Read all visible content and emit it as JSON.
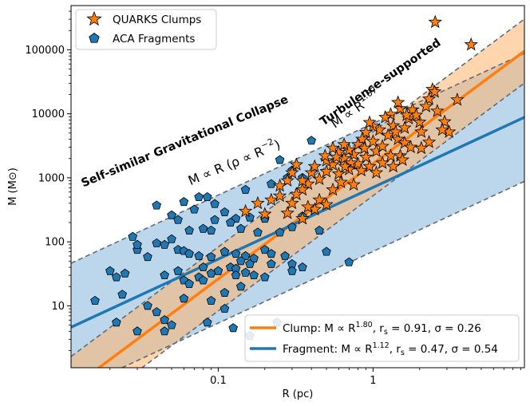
{
  "chart_data": {
    "type": "scatter",
    "xscale": "log",
    "yscale": "log",
    "xlim": [
      0.0112,
      9.5
    ],
    "ylim": [
      1.08,
      490000
    ],
    "xlabel": "R (pc)",
    "ylabel": "M (M⊙)",
    "x_ticks": [
      0.1,
      1
    ],
    "x_tick_labels": [
      "0.1",
      "1"
    ],
    "y_ticks": [
      10,
      100,
      1000,
      10000,
      100000
    ],
    "y_tick_labels": [
      "10",
      "100",
      "1000",
      "10000",
      "100000"
    ],
    "colors": {
      "clump": "#ff7f0e",
      "clump_band": "#ffb36b",
      "fragment": "#1f77b4",
      "fragment_band": "#7fb2d8",
      "dashed": "#5f6b78"
    },
    "legend_top": {
      "position": "top-left",
      "entries": [
        {
          "label": "QUARKS Clumps",
          "marker": "star",
          "color": "#ff7f0e"
        },
        {
          "label": "ACA Fragments",
          "marker": "pentagon",
          "color": "#1f77b4"
        }
      ]
    },
    "legend_bottom": {
      "position": "bottom-right",
      "entries": [
        {
          "prefix": "Clump: M ∝ R",
          "exp": "1.80",
          "suffix": ", r",
          "sub": "s",
          "rest": " = 0.91, σ = 0.26",
          "color": "#ff7f0e"
        },
        {
          "prefix": "Fragment: M ∝ R",
          "exp": "1.12",
          "suffix": ", r",
          "sub": "s",
          "rest": " = 0.47, σ = 0.54",
          "color": "#1f77b4"
        }
      ]
    },
    "fits": [
      {
        "name": "Clump",
        "slope": 1.8,
        "log_intercept": 3.22,
        "band_dex": 0.5,
        "color": "#ff7f0e"
      },
      {
        "name": "Fragment",
        "slope": 1.12,
        "log_intercept": 2.85,
        "band_dex": 1.0,
        "color": "#1f77b4"
      }
    ],
    "annotations": [
      {
        "id": "self-similar",
        "text": "Self-similar Gravitational Collapse",
        "x": 0.062,
        "y": 3300
      },
      {
        "id": "self-similar-rel",
        "text": "M ∝ R  (ρ ∝ R",
        "exp": "−2",
        "close": ")",
        "x": 0.13,
        "y": 1500
      },
      {
        "id": "turbulence",
        "text": "Turbulence-supported",
        "x": 1.15,
        "y": 28000
      },
      {
        "id": "turbulence-rel",
        "text": "M ∝ R",
        "exp": "1.67",
        "x": 0.8,
        "y": 10500
      }
    ],
    "series": [
      {
        "name": "QUARKS Clumps",
        "marker": "star",
        "points": [
          [
            2.52,
            270000
          ],
          [
            4.3,
            120000
          ],
          [
            2.42,
            24000
          ],
          [
            3.5,
            16500
          ],
          [
            2.3,
            17000
          ],
          [
            2.5,
            22000
          ],
          [
            2.2,
            13000
          ],
          [
            2.6,
            11000
          ],
          [
            2.9,
            7500
          ],
          [
            3.1,
            5200
          ],
          [
            2.0,
            7400
          ],
          [
            2.05,
            5200
          ],
          [
            1.8,
            11500
          ],
          [
            1.7,
            8400
          ],
          [
            1.9,
            9500
          ],
          [
            1.5,
            12000
          ],
          [
            1.6,
            6000
          ],
          [
            1.45,
            15000
          ],
          [
            1.3,
            9800
          ],
          [
            1.2,
            8800
          ],
          [
            1.35,
            6500
          ],
          [
            1.1,
            5600
          ],
          [
            1.0,
            6400
          ],
          [
            0.95,
            7300
          ],
          [
            0.9,
            5100
          ],
          [
            0.85,
            4000
          ],
          [
            1.25,
            4600
          ],
          [
            1.45,
            4000
          ],
          [
            1.6,
            3500
          ],
          [
            1.75,
            3000
          ],
          [
            2.3,
            3600
          ],
          [
            2.05,
            2900
          ],
          [
            1.0,
            3700
          ],
          [
            0.8,
            3300
          ],
          [
            0.75,
            2300
          ],
          [
            0.7,
            2700
          ],
          [
            0.65,
            2000
          ],
          [
            0.6,
            2500
          ],
          [
            0.9,
            2100
          ],
          [
            1.05,
            2600
          ],
          [
            1.15,
            3100
          ],
          [
            1.3,
            2200
          ],
          [
            1.5,
            2200
          ],
          [
            0.55,
            1600
          ],
          [
            0.5,
            1850
          ],
          [
            0.5,
            1250
          ],
          [
            0.6,
            1150
          ],
          [
            0.7,
            1350
          ],
          [
            0.8,
            1650
          ],
          [
            0.95,
            1500
          ],
          [
            1.15,
            1700
          ],
          [
            0.45,
            950
          ],
          [
            0.4,
            1200
          ],
          [
            0.38,
            800
          ],
          [
            0.35,
            650
          ],
          [
            0.32,
            1600
          ],
          [
            0.42,
            1500
          ],
          [
            0.3,
            1200
          ],
          [
            0.28,
            900
          ],
          [
            0.25,
            750
          ],
          [
            0.55,
            650
          ],
          [
            0.62,
            850
          ],
          [
            0.75,
            780
          ],
          [
            0.45,
            450
          ],
          [
            0.5,
            380
          ],
          [
            0.42,
            320
          ],
          [
            0.38,
            350
          ],
          [
            0.35,
            230
          ],
          [
            0.3,
            400
          ],
          [
            0.28,
            280
          ],
          [
            0.22,
            450
          ],
          [
            0.25,
            520
          ],
          [
            0.2,
            270
          ],
          [
            0.18,
            400
          ],
          [
            0.15,
            300
          ],
          [
            0.35,
            900
          ],
          [
            0.65,
            3300
          ],
          [
            0.55,
            2900
          ],
          [
            2.8,
            5600
          ],
          [
            0.88,
            2900
          ],
          [
            1.65,
            9500
          ],
          [
            0.72,
            1700
          ],
          [
            0.58,
            2100
          ],
          [
            0.66,
            1500
          ],
          [
            0.84,
            1300
          ],
          [
            1.05,
            1200
          ],
          [
            1.35,
            1500
          ],
          [
            1.55,
            1900
          ],
          [
            0.49,
            2200
          ],
          [
            1.4,
            5200
          ],
          [
            0.32,
            550
          ]
        ]
      },
      {
        "name": "ACA Fragments",
        "marker": "pentagon",
        "points": [
          [
            0.4,
            3800
          ],
          [
            0.25,
            1900
          ],
          [
            0.3,
            1300
          ],
          [
            0.35,
            1000
          ],
          [
            0.28,
            1000
          ],
          [
            0.22,
            800
          ],
          [
            0.15,
            650
          ],
          [
            0.085,
            500
          ],
          [
            0.075,
            500
          ],
          [
            0.06,
            420
          ],
          [
            0.04,
            370
          ],
          [
            0.095,
            390
          ],
          [
            0.07,
            320
          ],
          [
            0.05,
            260
          ],
          [
            0.11,
            290
          ],
          [
            0.095,
            220
          ],
          [
            0.055,
            220
          ],
          [
            0.13,
            230
          ],
          [
            0.16,
            240
          ],
          [
            0.2,
            230
          ],
          [
            0.12,
            200
          ],
          [
            0.08,
            160
          ],
          [
            0.065,
            150
          ],
          [
            0.09,
            150
          ],
          [
            0.14,
            160
          ],
          [
            0.18,
            140
          ],
          [
            0.25,
            140
          ],
          [
            0.35,
            250
          ],
          [
            0.3,
            170
          ],
          [
            0.04,
            95
          ],
          [
            0.045,
            90
          ],
          [
            0.05,
            110
          ],
          [
            0.055,
            75
          ],
          [
            0.06,
            72
          ],
          [
            0.065,
            65
          ],
          [
            0.075,
            60
          ],
          [
            0.09,
            58
          ],
          [
            0.11,
            70
          ],
          [
            0.13,
            65
          ],
          [
            0.15,
            60
          ],
          [
            0.17,
            55
          ],
          [
            0.2,
            75
          ],
          [
            0.22,
            65
          ],
          [
            0.27,
            60
          ],
          [
            0.3,
            45
          ],
          [
            0.35,
            40
          ],
          [
            0.03,
            75
          ],
          [
            0.03,
            90
          ],
          [
            0.028,
            120
          ],
          [
            0.035,
            58
          ],
          [
            0.025,
            32
          ],
          [
            0.022,
            28
          ],
          [
            0.02,
            35
          ],
          [
            0.024,
            15
          ],
          [
            0.016,
            12
          ],
          [
            0.045,
            30
          ],
          [
            0.055,
            35
          ],
          [
            0.06,
            25
          ],
          [
            0.065,
            22
          ],
          [
            0.075,
            28
          ],
          [
            0.08,
            25
          ],
          [
            0.09,
            32
          ],
          [
            0.1,
            35
          ],
          [
            0.12,
            40
          ],
          [
            0.13,
            38
          ],
          [
            0.15,
            33
          ],
          [
            0.17,
            30
          ],
          [
            0.2,
            28
          ],
          [
            0.035,
            10
          ],
          [
            0.04,
            8
          ],
          [
            0.045,
            6
          ],
          [
            0.05,
            5
          ],
          [
            0.03,
            4
          ],
          [
            0.022,
            5.5
          ],
          [
            0.045,
            4
          ],
          [
            0.085,
            5.5
          ],
          [
            0.125,
            4.5
          ],
          [
            0.16,
            3.4
          ],
          [
            0.24,
            5.5
          ],
          [
            0.7,
            48
          ],
          [
            0.08,
            40
          ],
          [
            0.14,
            50
          ],
          [
            0.22,
            45
          ],
          [
            0.45,
            150
          ],
          [
            0.5,
            70
          ],
          [
            0.11,
            16
          ],
          [
            0.14,
            20
          ],
          [
            0.16,
            45
          ],
          [
            0.09,
            12
          ],
          [
            0.11,
            9
          ],
          [
            0.06,
            13
          ],
          [
            0.13,
            30
          ],
          [
            0.3,
            35
          ]
        ]
      }
    ]
  }
}
